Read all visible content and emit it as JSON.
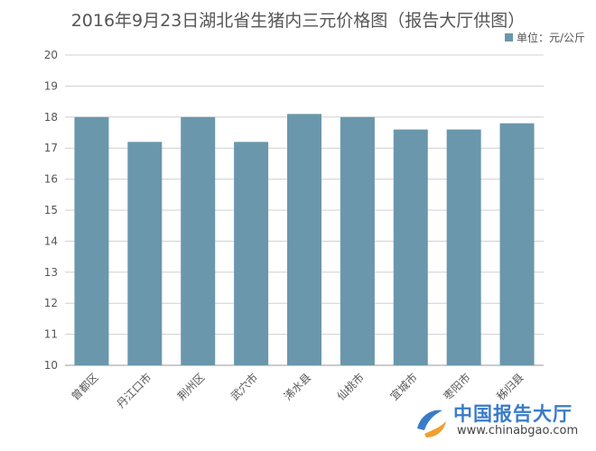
{
  "chart_data": {
    "type": "bar",
    "title": "2016年9月23日湖北省生猪内三元价格图（报告大厅供图）",
    "legend": "单位：元/公斤",
    "legend_position": "top-right",
    "categories": [
      "曾都区",
      "丹江口市",
      "荆州区",
      "武穴市",
      "浠水县",
      "仙桃市",
      "宜城市",
      "枣阳市",
      "秭归县"
    ],
    "values": [
      18.0,
      17.2,
      18.0,
      17.2,
      18.1,
      18.0,
      17.6,
      17.6,
      17.8
    ],
    "ylim": [
      10,
      20
    ],
    "yticks": [
      "10",
      "11",
      "12",
      "13",
      "14",
      "15",
      "16",
      "17",
      "18",
      "19",
      "20"
    ],
    "grid": true,
    "colors": {
      "bar": "#6A97AB",
      "grid": "#d0d0d0",
      "text": "#555555"
    }
  },
  "watermark": {
    "name": "中国报告大厅",
    "url": "www.chinabgao.com",
    "colors": {
      "name": "#3a7bc8",
      "logo_blue": "#3a7bc8",
      "logo_orange": "#f0a030"
    }
  }
}
